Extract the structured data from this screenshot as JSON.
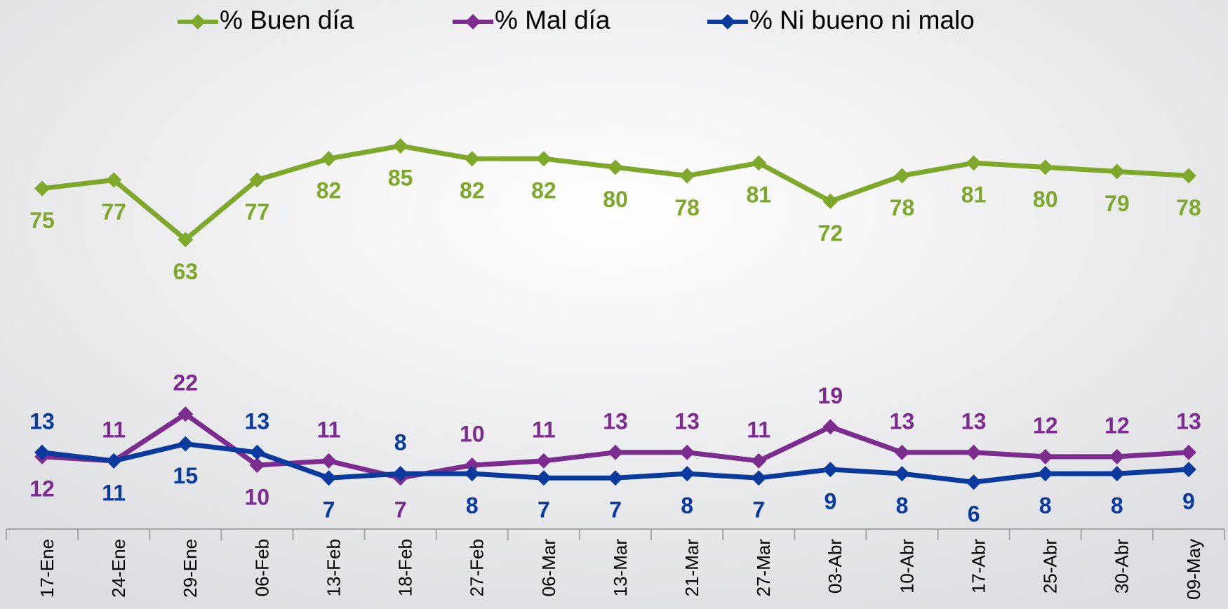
{
  "chart_data": {
    "type": "line",
    "categories": [
      "17-Ene",
      "24-Ene",
      "29-Ene",
      "06-Feb",
      "13-Feb",
      "18-Feb",
      "27-Feb",
      "06-Mar",
      "13-Mar",
      "21-Mar",
      "27-Mar",
      "03-Abr",
      "10-Abr",
      "17-Abr",
      "25-Abr",
      "30-Abr",
      "09-May"
    ],
    "series": [
      {
        "name": "% Buen día",
        "color": "#7ea82a",
        "values": [
          75,
          77,
          63,
          77,
          82,
          85,
          82,
          82,
          80,
          78,
          81,
          72,
          78,
          81,
          80,
          79,
          78
        ]
      },
      {
        "name": "% Mal día",
        "color": "#7b2c8e",
        "values": [
          12,
          11,
          22,
          10,
          11,
          7,
          10,
          11,
          13,
          13,
          11,
          19,
          13,
          13,
          12,
          12,
          13
        ]
      },
      {
        "name": "% Ni bueno ni malo",
        "color": "#0a3a9e",
        "values": [
          13,
          11,
          15,
          13,
          7,
          8,
          8,
          7,
          7,
          8,
          7,
          9,
          8,
          6,
          8,
          8,
          9
        ]
      }
    ],
    "ylim": [
      -5,
      100
    ],
    "legend": "top"
  }
}
